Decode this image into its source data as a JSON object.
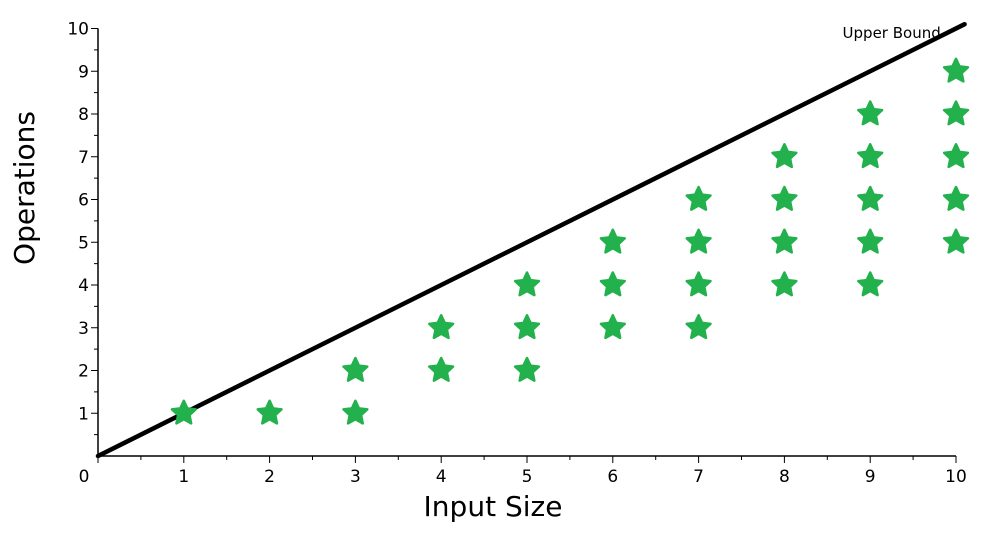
{
  "chart_data": {
    "type": "scatter",
    "xlabel": "Input Size",
    "ylabel": "Operations",
    "xlim": [
      0,
      10
    ],
    "ylim": [
      0,
      10
    ],
    "x_ticks": [
      0,
      1,
      2,
      3,
      4,
      5,
      6,
      7,
      8,
      9,
      10
    ],
    "y_ticks": [
      1,
      2,
      3,
      4,
      5,
      6,
      7,
      8,
      9,
      10
    ],
    "grid": false,
    "marker": "star",
    "marker_color": "#22b14c",
    "points": [
      {
        "x": 1,
        "y": 1
      },
      {
        "x": 2,
        "y": 1
      },
      {
        "x": 3,
        "y": 1
      },
      {
        "x": 3,
        "y": 2
      },
      {
        "x": 4,
        "y": 2
      },
      {
        "x": 4,
        "y": 3
      },
      {
        "x": 5,
        "y": 2
      },
      {
        "x": 5,
        "y": 3
      },
      {
        "x": 5,
        "y": 4
      },
      {
        "x": 6,
        "y": 3
      },
      {
        "x": 6,
        "y": 4
      },
      {
        "x": 6,
        "y": 5
      },
      {
        "x": 7,
        "y": 3
      },
      {
        "x": 7,
        "y": 4
      },
      {
        "x": 7,
        "y": 5
      },
      {
        "x": 7,
        "y": 6
      },
      {
        "x": 8,
        "y": 4
      },
      {
        "x": 8,
        "y": 5
      },
      {
        "x": 8,
        "y": 6
      },
      {
        "x": 8,
        "y": 7
      },
      {
        "x": 9,
        "y": 4
      },
      {
        "x": 9,
        "y": 5
      },
      {
        "x": 9,
        "y": 6
      },
      {
        "x": 9,
        "y": 7
      },
      {
        "x": 9,
        "y": 8
      },
      {
        "x": 10,
        "y": 5
      },
      {
        "x": 10,
        "y": 6
      },
      {
        "x": 10,
        "y": 7
      },
      {
        "x": 10,
        "y": 8
      },
      {
        "x": 10,
        "y": 9
      }
    ],
    "lines": [
      {
        "name": "Upper Bound",
        "x": [
          0,
          10.1
        ],
        "y": [
          0,
          10.1
        ],
        "color": "#000000"
      }
    ],
    "annotations": [
      {
        "text": "Upper Bound",
        "x": 9.25,
        "y": 9.9
      }
    ]
  }
}
